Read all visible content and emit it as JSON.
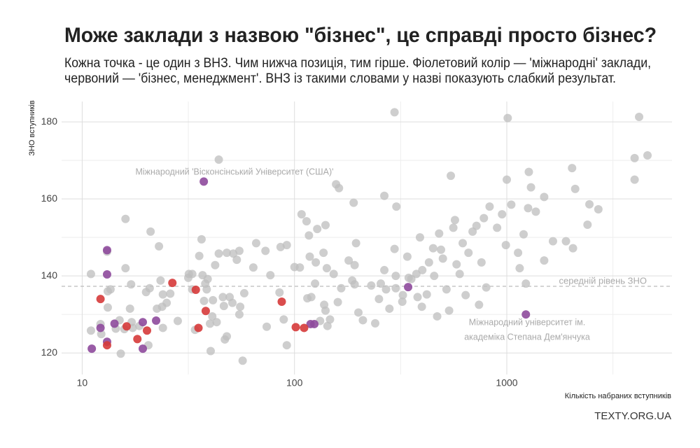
{
  "chart_data": {
    "type": "scatter",
    "title": "Може заклади з назвою \"бізнес\", це справді просто бізнес?",
    "subtitle": [
      "Кожна точка - це один з ВНЗ. Чим нижча позиція, тим гірше. Фіолетовий колір — 'міжнародні' заклади,",
      " червоний — 'бізнес, менеджмент'. ВНЗ із такими словами у назві показують слабкий результат."
    ],
    "x_label": "Кількість набраних вступників",
    "y_label": "ЗНО вступників",
    "caption": "TEXTY.ORG.UA",
    "x_log": true,
    "grid": true,
    "xlim": [
      8,
      6000
    ],
    "ylim": [
      114.4,
      185.3
    ],
    "xticks": [
      10,
      100,
      1000
    ],
    "yticks": [
      120,
      140,
      160,
      180
    ],
    "reference_line": {
      "value": 137.3,
      "label": "середній рівень ЗНО"
    },
    "annotations": [
      {
        "lines": [
          "Міжнародний 'Віскон­сінський Університет (США)'"
        ]
      },
      {
        "lines": [
          "Міжнародний університет ім.",
          "академіка Степана Дем'янчука"
        ]
      }
    ],
    "series": [
      {
        "color": "#bdbdbd",
        "x": [
          11,
          11,
          12.2,
          12.3,
          13.1,
          13.2,
          13.2,
          13.6,
          14.4,
          15,
          15.2,
          15.8,
          16,
          16,
          17,
          16.8,
          17.3,
          17.1,
          18.6,
          20,
          21,
          20.8,
          20.5,
          22.5,
          23,
          23.4,
          24,
          24,
          25,
          23.8,
          26,
          28.2,
          31.8,
          31.6,
          33,
          33,
          34,
          35.6,
          36.5,
          36.9,
          37.5,
          38,
          38.6,
          39,
          40,
          40.3,
          41.3,
          41,
          42.3,
          43,
          44,
          44,
          46,
          46.5,
          47,
          48,
          48,
          49.5,
          51,
          51.5,
          53.5,
          55,
          55,
          55.5,
          57,
          58,
          64,
          66,
          73,
          74,
          77,
          86,
          85,
          89,
          92,
          92,
          100,
          106,
          108,
          114,
          117,
          118,
          115,
          120,
          126,
          128,
          125,
          132,
          138,
          137,
          140,
          142,
          143,
          147,
          140,
          153,
          157,
          162,
          160,
          166,
          180,
          187,
          190,
          192,
          195,
          192,
          200,
          210,
          230,
          240,
          250,
          255,
          265,
          270,
          265,
          280,
          296,
          296,
          300,
          302,
          300,
          322,
          324,
          340,
          345,
          355,
          375,
          380,
          390,
          398,
          400,
          420,
          430,
          450,
          455,
          470,
          480,
          490,
          500,
          520,
          535,
          545,
          560,
          570,
          580,
          600,
          620,
          640,
          660,
          690,
          720,
          740,
          760,
          780,
          800,
          830,
          900,
          950,
          990,
          1010,
          1000,
          1050,
          1130,
          1150,
          1200,
          1230,
          1260,
          1300,
          1270,
          1370,
          1500,
          1500,
          1650,
          1900,
          2030,
          2100,
          2050,
          2450,
          2400,
          2700,
          4000,
          4000,
          4200,
          4600
        ],
        "values": [
          140.5,
          125.8,
          127.5,
          124.9,
          146.3,
          136,
          131.8,
          136.5,
          126.3,
          128.5,
          119.8,
          126.2,
          142,
          154.8,
          137.8,
          131.5,
          126.5,
          128,
          127,
          135.8,
          151.5,
          136.8,
          122,
          131.5,
          147.7,
          138.8,
          135.2,
          126.5,
          133,
          132,
          135.4,
          128.3,
          140.5,
          139.5,
          140.5,
          136.5,
          126,
          145.2,
          149.5,
          140.2,
          133.5,
          138,
          136.5,
          139.2,
          127.6,
          120.5,
          133.7,
          129.5,
          142.8,
          128,
          145.8,
          170.2,
          134.5,
          132.2,
          123.5,
          146,
          124.3,
          134.5,
          133,
          145.8,
          144.2,
          146.5,
          130,
          132,
          118,
          135.5,
          142.2,
          148.5,
          146.5,
          126.8,
          140.2,
          147.5,
          135.7,
          128.7,
          148,
          122,
          142.3,
          142.2,
          156,
          154.2,
          150.5,
          145,
          134.2,
          134.5,
          143.5,
          152.2,
          138,
          128.3,
          132.5,
          146,
          153.2,
          142,
          127,
          128.7,
          131,
          140.5,
          163.8,
          162.8,
          133.2,
          136.8,
          144,
          138.8,
          159,
          142.8,
          148.5,
          137.8,
          130.5,
          128.5,
          137.5,
          127.7,
          134,
          138,
          141.5,
          136.5,
          160.8,
          131.5,
          182.5,
          147,
          140,
          158,
          136.8,
          133.3,
          135,
          145,
          139.5,
          139.2,
          140.5,
          134.5,
          150,
          132,
          141.5,
          135.2,
          143.5,
          147.2,
          140,
          129.5,
          151,
          146.8,
          144.5,
          136.5,
          131,
          166,
          152.5,
          154.5,
          143,
          140.5,
          148.5,
          135,
          146,
          151.5,
          153,
          132.5,
          143.5,
          155,
          137,
          158,
          152.5,
          156,
          148,
          181,
          165,
          158.5,
          146,
          142,
          150.8,
          138,
          157.6,
          163,
          167,
          156.7,
          144,
          160.5,
          149,
          149,
          168,
          162.6,
          147.2,
          158.6,
          153.3,
          157.3,
          170.6,
          165,
          181.3,
          171.3
        ]
      },
      {
        "color": "#8e4a9c",
        "x": [
          13.1,
          13.1,
          12.2,
          11.1,
          13.1,
          14.2,
          19.3,
          22.3,
          19.3,
          37.4,
          343,
          119,
          124,
          1230
        ],
        "values": [
          146.7,
          140.4,
          126.5,
          121.1,
          122.9,
          127.6,
          128,
          128.4,
          121.1,
          164.5,
          137.1,
          127.5,
          127.5,
          130
        ]
      },
      {
        "color": "#d63a3a",
        "x": [
          12.2,
          13.1,
          16.2,
          18.2,
          20.2,
          26.6,
          34.3,
          38.2,
          35.3,
          87.1,
          101.4,
          111
        ],
        "values": [
          134,
          122,
          126.9,
          123.6,
          125.8,
          138.2,
          136.4,
          130.9,
          126.5,
          133.3,
          126.7,
          126.5
        ]
      }
    ]
  }
}
